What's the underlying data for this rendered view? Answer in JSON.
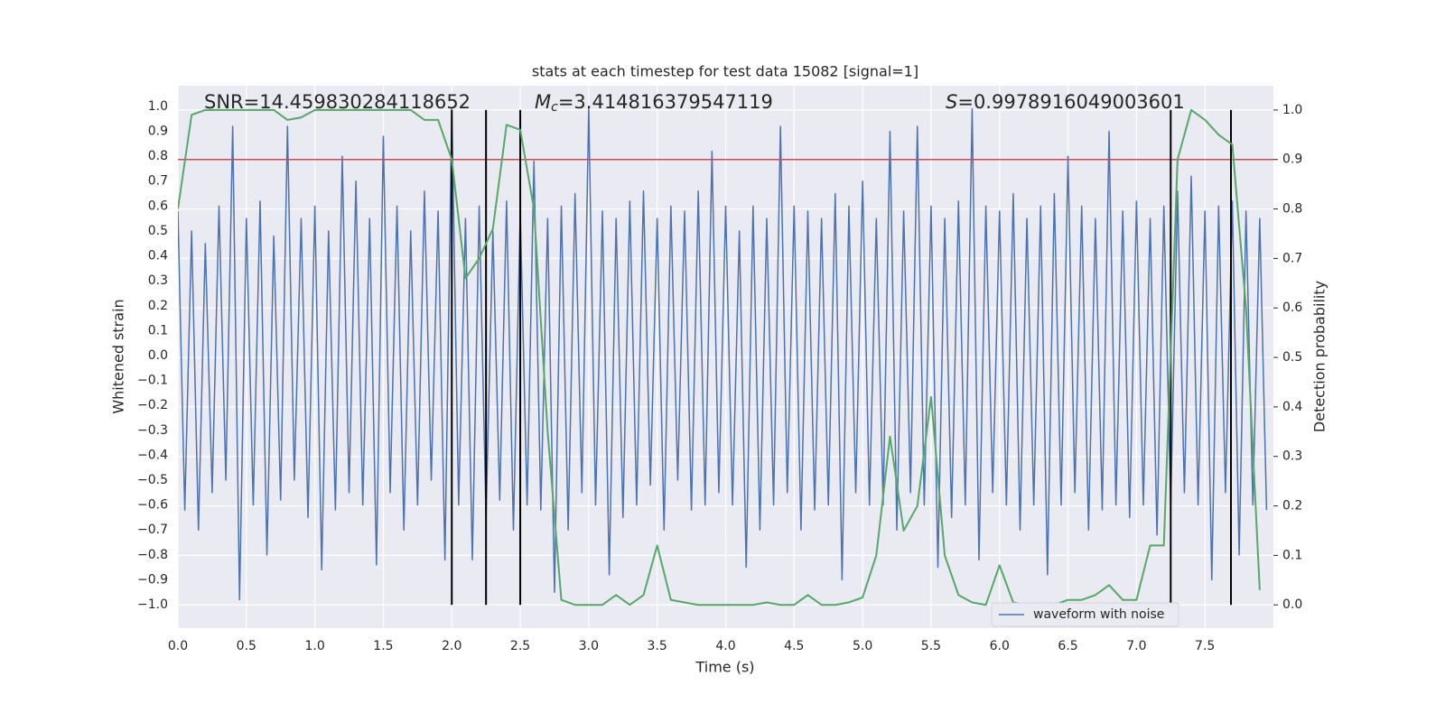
{
  "chart_data": {
    "type": "line",
    "title": "stats at each timestep for test data 15082 [signal=1]",
    "xlabel": "Time (s)",
    "ylabel": "Whitened strain",
    "y2label": "Detection probability",
    "annotations": [
      "SNR=14.459830284118652",
      {
        "symbol": "M",
        "subscript": "c",
        "text": "=3.414816379547119"
      },
      {
        "symbol": "S",
        "text": "=0.9978916049003601"
      }
    ],
    "xlim": [
      0,
      8
    ],
    "ylim": [
      -1.094,
      1.083
    ],
    "y2lim": [
      -0.047,
      1.049
    ],
    "xticks": [
      {
        "value": 0,
        "label": "0.0"
      },
      {
        "value": 0.5,
        "label": "0.5"
      },
      {
        "value": 1,
        "label": "1.0"
      },
      {
        "value": 1.5,
        "label": "1.5"
      },
      {
        "value": 2,
        "label": "2.0"
      },
      {
        "value": 2.5,
        "label": "2.5"
      },
      {
        "value": 3,
        "label": "3.0"
      },
      {
        "value": 3.5,
        "label": "3.5"
      },
      {
        "value": 4,
        "label": "4.0"
      },
      {
        "value": 4.5,
        "label": "4.5"
      },
      {
        "value": 5,
        "label": "5.0"
      },
      {
        "value": 5.5,
        "label": "5.5"
      },
      {
        "value": 6,
        "label": "6.0"
      },
      {
        "value": 6.5,
        "label": "6.5"
      },
      {
        "value": 7,
        "label": "7.0"
      },
      {
        "value": 7.5,
        "label": "7.5"
      }
    ],
    "yticks": [
      {
        "value": -1,
        "label": "−1.0"
      },
      {
        "value": -0.9,
        "label": "−0.9"
      },
      {
        "value": -0.8,
        "label": "−0.8"
      },
      {
        "value": -0.7,
        "label": "−0.7"
      },
      {
        "value": -0.6,
        "label": "−0.6"
      },
      {
        "value": -0.5,
        "label": "−0.5"
      },
      {
        "value": -0.4,
        "label": "−0.4"
      },
      {
        "value": -0.3,
        "label": "−0.3"
      },
      {
        "value": -0.2,
        "label": "−0.2"
      },
      {
        "value": -0.1,
        "label": "−0.1"
      },
      {
        "value": 0,
        "label": "0.0"
      },
      {
        "value": 0.1,
        "label": "0.1"
      },
      {
        "value": 0.2,
        "label": "0.2"
      },
      {
        "value": 0.3,
        "label": "0.3"
      },
      {
        "value": 0.4,
        "label": "0.4"
      },
      {
        "value": 0.5,
        "label": "0.5"
      },
      {
        "value": 0.6,
        "label": "0.6"
      },
      {
        "value": 0.7,
        "label": "0.7"
      },
      {
        "value": 0.8,
        "label": "0.8"
      },
      {
        "value": 0.9,
        "label": "0.9"
      },
      {
        "value": 1,
        "label": "1.0"
      }
    ],
    "y2ticks": [
      {
        "value": 0,
        "label": "0.0"
      },
      {
        "value": 0.1,
        "label": "0.1"
      },
      {
        "value": 0.2,
        "label": "0.2"
      },
      {
        "value": 0.3,
        "label": "0.3"
      },
      {
        "value": 0.4,
        "label": "0.4"
      },
      {
        "value": 0.5,
        "label": "0.5"
      },
      {
        "value": 0.6,
        "label": "0.6"
      },
      {
        "value": 0.7,
        "label": "0.7"
      },
      {
        "value": 0.8,
        "label": "0.8"
      },
      {
        "value": 0.9,
        "label": "0.9"
      },
      {
        "value": 1,
        "label": "1.0"
      }
    ],
    "grid": true,
    "legend": "lower right",
    "threshold": {
      "value": 0.9,
      "axis": "y2",
      "color": "#c44e52"
    },
    "vlines": {
      "x": [
        2.0,
        2.25,
        2.5,
        7.25,
        7.69
      ],
      "ymin": 0,
      "ymax": 1,
      "axis": "y2",
      "color": "#000000"
    },
    "series": [
      {
        "name": "waveform with noise",
        "color": "#4c72b0",
        "axis": "y",
        "x": [
          0,
          0.05,
          0.1,
          0.15,
          0.2,
          0.25,
          0.3,
          0.35,
          0.4,
          0.45,
          0.5,
          0.55,
          0.6,
          0.65,
          0.7,
          0.75,
          0.8,
          0.85,
          0.9,
          0.95,
          1,
          1.05,
          1.1,
          1.15,
          1.2,
          1.25,
          1.3,
          1.35,
          1.4,
          1.45,
          1.5,
          1.55,
          1.6,
          1.65,
          1.7,
          1.75,
          1.8,
          1.85,
          1.9,
          1.95,
          2,
          2.05,
          2.1,
          2.15,
          2.2,
          2.25,
          2.3,
          2.35,
          2.4,
          2.45,
          2.5,
          2.55,
          2.6,
          2.65,
          2.7,
          2.75,
          2.8,
          2.85,
          2.9,
          2.95,
          3,
          3.05,
          3.1,
          3.15,
          3.2,
          3.25,
          3.3,
          3.35,
          3.4,
          3.45,
          3.5,
          3.55,
          3.6,
          3.65,
          3.7,
          3.75,
          3.8,
          3.85,
          3.9,
          3.95,
          4,
          4.05,
          4.1,
          4.15,
          4.2,
          4.25,
          4.3,
          4.35,
          4.4,
          4.45,
          4.5,
          4.55,
          4.6,
          4.65,
          4.7,
          4.75,
          4.8,
          4.85,
          4.9,
          4.95,
          5,
          5.05,
          5.1,
          5.15,
          5.2,
          5.25,
          5.3,
          5.35,
          5.4,
          5.45,
          5.5,
          5.55,
          5.6,
          5.65,
          5.7,
          5.75,
          5.8,
          5.85,
          5.9,
          5.95,
          6,
          6.05,
          6.1,
          6.15,
          6.2,
          6.25,
          6.3,
          6.35,
          6.4,
          6.45,
          6.5,
          6.55,
          6.6,
          6.65,
          6.7,
          6.75,
          6.8,
          6.85,
          6.9,
          6.95,
          7,
          7.05,
          7.1,
          7.15,
          7.2,
          7.25,
          7.3,
          7.35,
          7.4,
          7.45,
          7.5,
          7.55,
          7.6,
          7.65,
          7.7,
          7.75,
          7.8,
          7.85,
          7.9,
          7.95
        ],
        "values": [
          0.58,
          -0.62,
          0.5,
          -0.7,
          0.45,
          -0.55,
          0.6,
          -0.5,
          0.92,
          -0.98,
          0.55,
          -0.6,
          0.62,
          -0.8,
          0.48,
          -0.58,
          0.92,
          -0.5,
          0.55,
          -0.65,
          0.6,
          -0.86,
          0.5,
          -0.62,
          0.8,
          -0.55,
          0.7,
          -0.6,
          0.55,
          -0.84,
          0.88,
          -0.55,
          0.6,
          -0.7,
          0.5,
          -0.6,
          0.66,
          -0.5,
          0.58,
          -0.82,
          0.99,
          -0.6,
          0.55,
          -0.82,
          0.6,
          -0.65,
          0.5,
          -0.58,
          0.62,
          -0.7,
          0.58,
          -0.6,
          0.78,
          -0.62,
          0.55,
          -0.95,
          0.6,
          -0.7,
          0.65,
          -0.55,
          0.99,
          -0.6,
          0.58,
          -0.88,
          0.55,
          -0.65,
          0.62,
          -0.6,
          0.66,
          -0.52,
          0.55,
          -0.7,
          0.6,
          -0.5,
          0.58,
          -0.62,
          0.66,
          -0.6,
          0.82,
          -0.55,
          0.6,
          -0.6,
          0.5,
          -0.85,
          0.6,
          -0.7,
          0.55,
          -0.6,
          0.92,
          -0.55,
          0.6,
          -0.7,
          0.58,
          -0.62,
          0.55,
          -0.6,
          0.65,
          -0.9,
          0.6,
          -0.55,
          0.7,
          -0.6,
          0.55,
          -0.6,
          0.9,
          -0.7,
          0.58,
          -0.55,
          0.92,
          -0.6,
          0.6,
          -0.85,
          0.55,
          -0.65,
          0.62,
          -0.6,
          0.99,
          -0.82,
          0.6,
          -0.55,
          0.58,
          -0.6,
          0.65,
          -0.7,
          0.55,
          -0.6,
          0.6,
          -0.88,
          0.65,
          -0.6,
          0.8,
          -0.55,
          0.6,
          -0.7,
          0.55,
          -0.62,
          0.9,
          -0.6,
          0.58,
          -0.65,
          0.62,
          -0.6,
          0.55,
          -0.72,
          0.6,
          -0.6,
          0.66,
          -0.55,
          0.72,
          -0.6,
          0.58,
          -0.9,
          0.6,
          -0.55,
          0.62,
          -0.8,
          0.58,
          -0.6,
          0.55,
          -0.62
        ]
      },
      {
        "color": "#55a868",
        "axis": "y2",
        "x": [
          0,
          0.1,
          0.2,
          0.3,
          0.4,
          0.5,
          0.6,
          0.7,
          0.8,
          0.9,
          1,
          1.1,
          1.2,
          1.3,
          1.4,
          1.5,
          1.6,
          1.7,
          1.8,
          1.9,
          2,
          2.1,
          2.2,
          2.3,
          2.4,
          2.5,
          2.6,
          2.7,
          2.8,
          2.9,
          3,
          3.1,
          3.2,
          3.3,
          3.4,
          3.5,
          3.6,
          3.7,
          3.8,
          3.9,
          4,
          4.1,
          4.2,
          4.3,
          4.4,
          4.5,
          4.6,
          4.7,
          4.8,
          4.9,
          5,
          5.1,
          5.2,
          5.3,
          5.4,
          5.5,
          5.6,
          5.7,
          5.8,
          5.9,
          6,
          6.1,
          6.2,
          6.3,
          6.4,
          6.5,
          6.6,
          6.7,
          6.8,
          6.9,
          7,
          7.1,
          7.2,
          7.3,
          7.4,
          7.5,
          7.6,
          7.7,
          7.8,
          7.9
        ],
        "values": [
          0.8,
          0.99,
          1.0,
          1.0,
          1.0,
          1.0,
          1.0,
          1.0,
          0.98,
          0.985,
          1.0,
          1.0,
          1.0,
          1.0,
          1.0,
          1.0,
          1.0,
          1.0,
          0.98,
          0.98,
          0.9,
          0.66,
          0.7,
          0.76,
          0.97,
          0.96,
          0.8,
          0.35,
          0.01,
          0.0,
          0.0,
          0.0,
          0.02,
          0.0,
          0.02,
          0.12,
          0.01,
          0.005,
          0.0,
          0.0,
          0.0,
          0.0,
          0.0,
          0.005,
          0.0,
          0.0,
          0.02,
          0.0,
          0.0,
          0.005,
          0.015,
          0.1,
          0.34,
          0.15,
          0.2,
          0.42,
          0.1,
          0.02,
          0.005,
          0.0,
          0.08,
          0.005,
          0.0,
          0.0,
          0.0,
          0.01,
          0.01,
          0.02,
          0.04,
          0.01,
          0.01,
          0.12,
          0.12,
          0.9,
          1.0,
          0.98,
          0.95,
          0.93,
          0.6,
          0.03
        ]
      }
    ]
  }
}
